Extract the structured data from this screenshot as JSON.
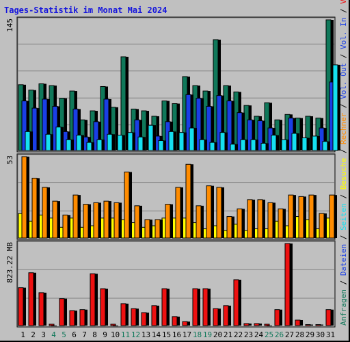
{
  "chart_data": {
    "type": "bar",
    "title": "Tages-Statistik im Monat Mai 2024",
    "x": [
      "1",
      "2",
      "3",
      "4",
      "5",
      "6",
      "7",
      "8",
      "9",
      "10",
      "11",
      "12",
      "13",
      "14",
      "15",
      "16",
      "17",
      "18",
      "19",
      "20",
      "21",
      "22",
      "23",
      "24",
      "25",
      "26",
      "27",
      "28",
      "29",
      "30",
      "31"
    ],
    "weekend_days": [
      "4",
      "5",
      "11",
      "12",
      "18",
      "19",
      "25",
      "26"
    ],
    "panels": [
      {
        "name": "top",
        "ylabel": "145",
        "ylim": [
          0,
          145
        ],
        "series": [
          {
            "name": "Anfragen",
            "color": "#10785A",
            "values": [
              73,
              67,
              74,
              72,
              58,
              66,
              34,
              44,
              71,
              48,
              104,
              46,
              44,
              38,
              55,
              52,
              82,
              72,
              66,
              123,
              72,
              65,
              50,
              38,
              53,
              34,
              40,
              36,
              38,
              36,
              145
            ]
          },
          {
            "name": "Dateien",
            "color": "#1A3FE6",
            "values": [
              55,
              47,
              57,
              49,
              21,
              46,
              15,
              32,
              57,
              0,
              0,
              34,
              0,
              16,
              32,
              0,
              62,
              58,
              49,
              61,
              55,
              42,
              34,
              33,
              25,
              0,
              36,
              0,
              0,
              25,
              76
            ]
          },
          {
            "name": "Seiten",
            "color": "#15E0F0",
            "values": [
              21,
              0,
              18,
              26,
              12,
              17,
              9,
              12,
              18,
              17,
              20,
              15,
              28,
              11,
              21,
              20,
              25,
              12,
              9,
              20,
              7,
              12,
              12,
              8,
              17,
              12,
              19,
              14,
              16,
              10,
              95
            ]
          }
        ]
      },
      {
        "name": "middle",
        "ylabel": "53",
        "ylim": [
          0,
          53
        ],
        "series": [
          {
            "name": "Besuche",
            "color": "#FFFF00",
            "values": [
              16,
              11,
              15,
              13,
              7,
              13,
              7,
              8,
              13,
              13,
              12,
              10,
              7,
              8,
              13,
              13,
              13,
              10,
              6,
              8,
              5,
              9,
              5,
              6,
              6,
              11,
              8,
              14,
              12,
              6,
              13
            ]
          },
          {
            "name": "Rechner",
            "color": "#FF8C00",
            "values": [
              53,
              39,
              33,
              24,
              15,
              28,
              22,
              23,
              24,
              23,
              43,
              21,
              12,
              12,
              22,
              33,
              48,
              21,
              34,
              33,
              14,
              19,
              25,
              25,
              23,
              19,
              28,
              27,
              28,
              16,
              28
            ]
          }
        ]
      },
      {
        "name": "bottom",
        "ylabel": "823.22 MB",
        "ylim": [
          0,
          823.22
        ],
        "series": [
          {
            "name": "Volumen",
            "color": "#EE1111",
            "values": [
              380,
              530,
              330,
              0,
              270,
              150,
              160,
              520,
              370,
              0,
              220,
              170,
              130,
              200,
              370,
              90,
              40,
              370,
              370,
              170,
              200,
              460,
              20,
              20,
              0,
              160,
              823,
              55,
              10,
              10,
              160
            ]
          }
        ]
      }
    ],
    "right_labels": [
      {
        "text": "Anfragen",
        "color": "#10785A"
      },
      {
        "text": " / ",
        "color": "#000000"
      },
      {
        "text": "Dateien",
        "color": "#1A3FE6"
      },
      {
        "text": " / ",
        "color": "#000000"
      },
      {
        "text": "Seiten",
        "color": "#15E0F0"
      },
      {
        "text": " / ",
        "color": "#000000"
      },
      {
        "text": "Besuche",
        "color": "#FFFF00"
      },
      {
        "text": " / ",
        "color": "#000000"
      },
      {
        "text": "Rechner",
        "color": "#FF8C00"
      },
      {
        "text": " / ",
        "color": "#000000"
      },
      {
        "text": "Vol. Out",
        "color": "#1A3FE6"
      },
      {
        "text": " / ",
        "color": "#000000"
      },
      {
        "text": "Vol. In",
        "color": "#1A3FE6"
      },
      {
        "text": " / ",
        "color": "#000000"
      },
      {
        "text": "Volumen",
        "color": "#EE1111"
      }
    ],
    "colors": {
      "background": "#C0C0C0",
      "title": "#1515DD",
      "weekday_label": "#000000",
      "weekend_label": "#10785A",
      "grid": "#808080"
    },
    "grid": true
  }
}
